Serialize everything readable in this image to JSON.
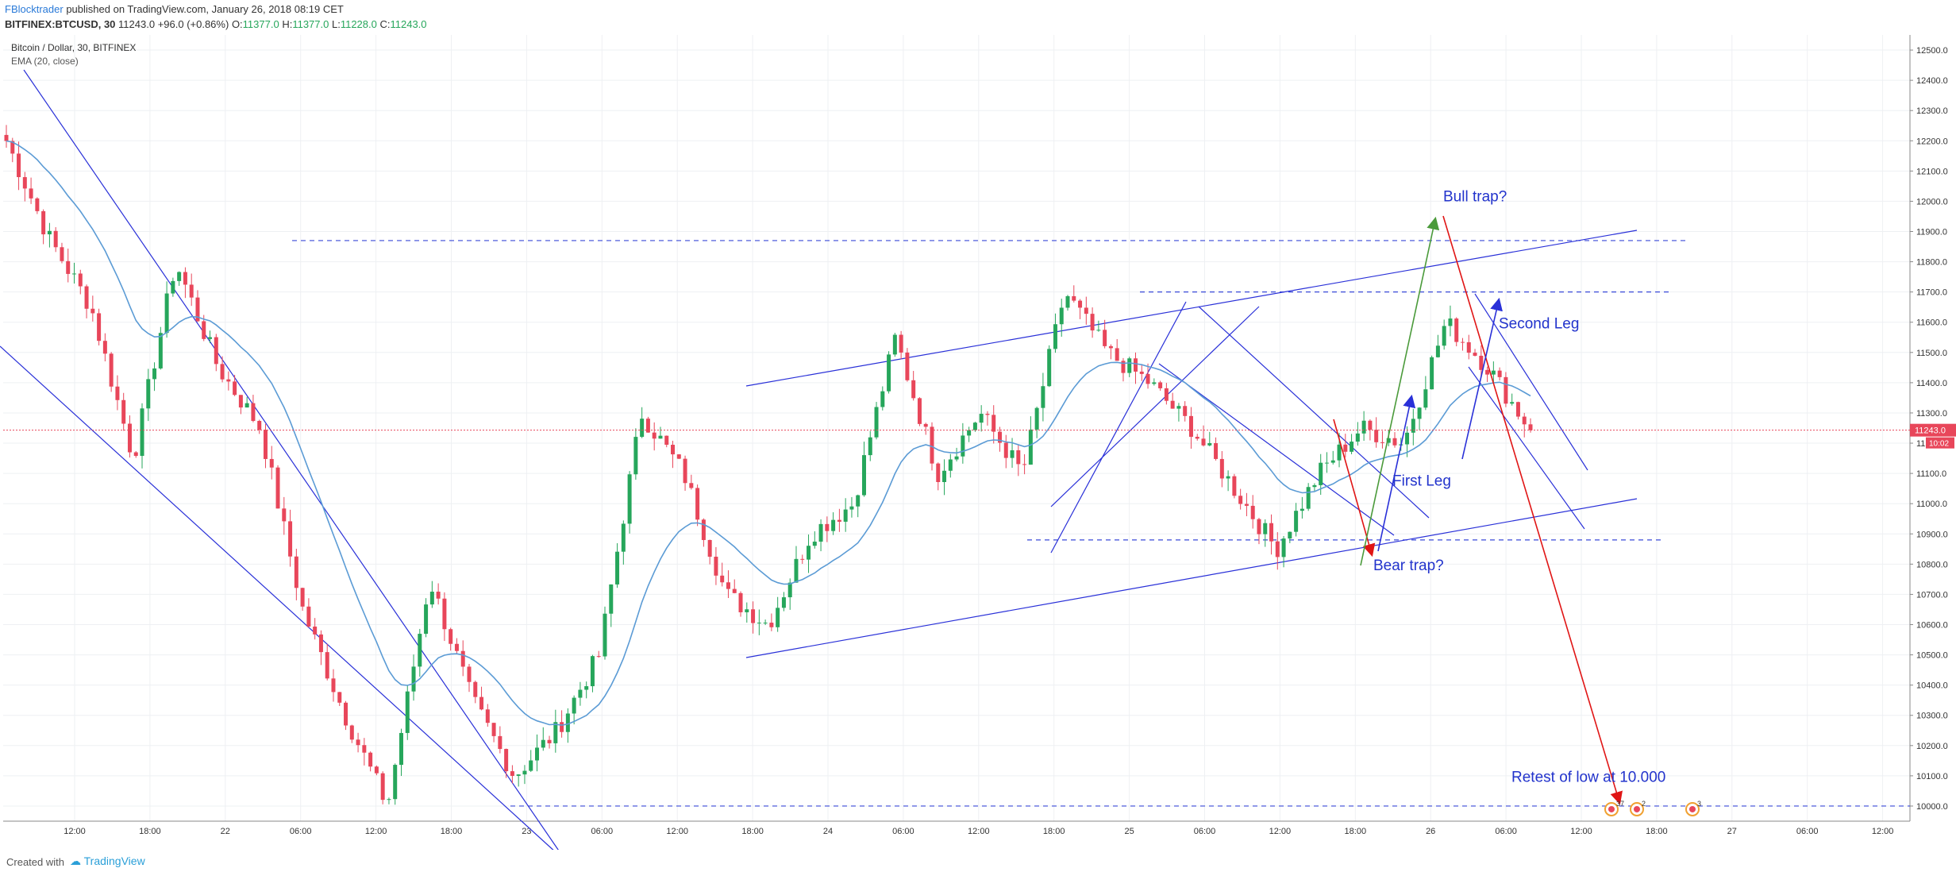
{
  "header": {
    "author": "FBlocktrader",
    "published": "published on TradingView.com, January 26, 2018 08:19 CET",
    "symbol": "BITFINEX:BTCUSD, 30",
    "last_price": "11243.0",
    "change": "+96.0 (+0.86%)",
    "ohlc_o_label": "O:",
    "ohlc_o": "11377.0",
    "ohlc_h_label": "H:",
    "ohlc_h": "11377.0",
    "ohlc_l_label": "L:",
    "ohlc_l": "11228.0",
    "ohlc_c_label": "C:",
    "ohlc_c": "11243.0"
  },
  "legend": {
    "series_name": "Bitcoin / Dollar, 30, BITFINEX",
    "indicator": "EMA (20, close)"
  },
  "footer": {
    "created_with": "Created with",
    "brand": "TradingView"
  },
  "colors": {
    "up": "#26a65b",
    "down": "#e8465a",
    "ema": "#5b9bd5",
    "trend": "#2930d8",
    "dashed": "#3a4ad8",
    "arrow_red": "#e01515",
    "arrow_green": "#4a9a3a",
    "annotation": "#2233cc",
    "price_label": "#e8465a"
  },
  "chart_data": {
    "type": "candlestick",
    "ylim": [
      9950,
      12550
    ],
    "y_ticks": [
      "10000.0",
      "10100.0",
      "10200.0",
      "10300.0",
      "10400.0",
      "10500.0",
      "10600.0",
      "10700.0",
      "10800.0",
      "10900.0",
      "11000.0",
      "11100.0",
      "11200.0",
      "11300.0",
      "11400.0",
      "11500.0",
      "11600.0",
      "11700.0",
      "11800.0",
      "11900.0",
      "12000.0",
      "12100.0",
      "12200.0",
      "12300.0",
      "12400.0",
      "12500.0"
    ],
    "x_ticks": [
      "12:00",
      "18:00",
      "22",
      "06:00",
      "12:00",
      "18:00",
      "23",
      "06:00",
      "12:00",
      "18:00",
      "24",
      "06:00",
      "12:00",
      "18:00",
      "25",
      "06:00",
      "12:00",
      "18:00",
      "26",
      "06:00",
      "12:00",
      "18:00",
      "27",
      "06:00",
      "12:00"
    ],
    "current_price": 11243.0,
    "current_price_label": "11243.0",
    "countdown_label": "10:02",
    "candle_count": 248,
    "key_prices": [
      12200,
      11880,
      11650,
      11150,
      11800,
      11450,
      11250,
      10650,
      10300,
      10000,
      10750,
      10350,
      10100,
      10250,
      10500,
      11300,
      11100,
      10700,
      10600,
      10900,
      11000,
      11550,
      11100,
      11300,
      11100,
      11700,
      11500,
      11400,
      11250,
      11050,
      10850,
      11100,
      11250,
      11200,
      11600,
      11450,
      11243
    ],
    "annotations": [
      {
        "text": "Bull trap?",
        "price": 12000
      },
      {
        "text": "Second Leg",
        "price": 11580
      },
      {
        "text": "First Leg",
        "price": 11060
      },
      {
        "text": "Bear trap?",
        "price": 10780
      },
      {
        "text": "Retest of low at 10.000",
        "price": 10080
      }
    ],
    "horizontal_levels": [
      11870,
      11700,
      10880,
      10000
    ],
    "event_badges": [
      "37",
      "2",
      "3"
    ]
  }
}
